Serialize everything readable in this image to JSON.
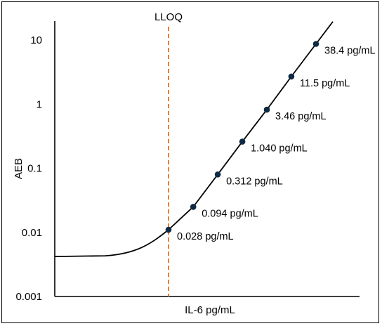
{
  "chart_data": {
    "type": "line",
    "x_axis": {
      "label": "IL-6 pg/mL",
      "tick_labels_shown": false
    },
    "y_axis": {
      "label": "AEB",
      "scale": "log",
      "ticks": [
        {
          "value": 0.001,
          "label": "0.001"
        },
        {
          "value": 0.01,
          "label": "0.01"
        },
        {
          "value": 0.1,
          "label": "0.1"
        },
        {
          "value": 1,
          "label": "1"
        },
        {
          "value": 10,
          "label": "10"
        }
      ],
      "ylim": [
        0.001,
        20
      ]
    },
    "reference_line": {
      "label": "LLOQ",
      "x": 0.028,
      "color": "#ed7d31",
      "style": "dashed"
    },
    "baseline_aeb": 0.0042,
    "series": [
      {
        "color": "#0f2a44",
        "points": [
          {
            "x": 0.028,
            "y": 0.011,
            "label": "0.028 pg/mL"
          },
          {
            "x": 0.094,
            "y": 0.025,
            "label": "0.094 pg/mL"
          },
          {
            "x": 0.312,
            "y": 0.08,
            "label": "0.312 pg/mL"
          },
          {
            "x": 1.04,
            "y": 0.26,
            "label": "1.040 pg/mL"
          },
          {
            "x": 3.46,
            "y": 0.82,
            "label": "3.46 pg/mL"
          },
          {
            "x": 11.5,
            "y": 2.7,
            "label": "11.5 pg/mL"
          },
          {
            "x": 38.4,
            "y": 8.7,
            "label": "38.4 pg/mL"
          }
        ]
      }
    ],
    "grid": false,
    "legend": "none"
  }
}
